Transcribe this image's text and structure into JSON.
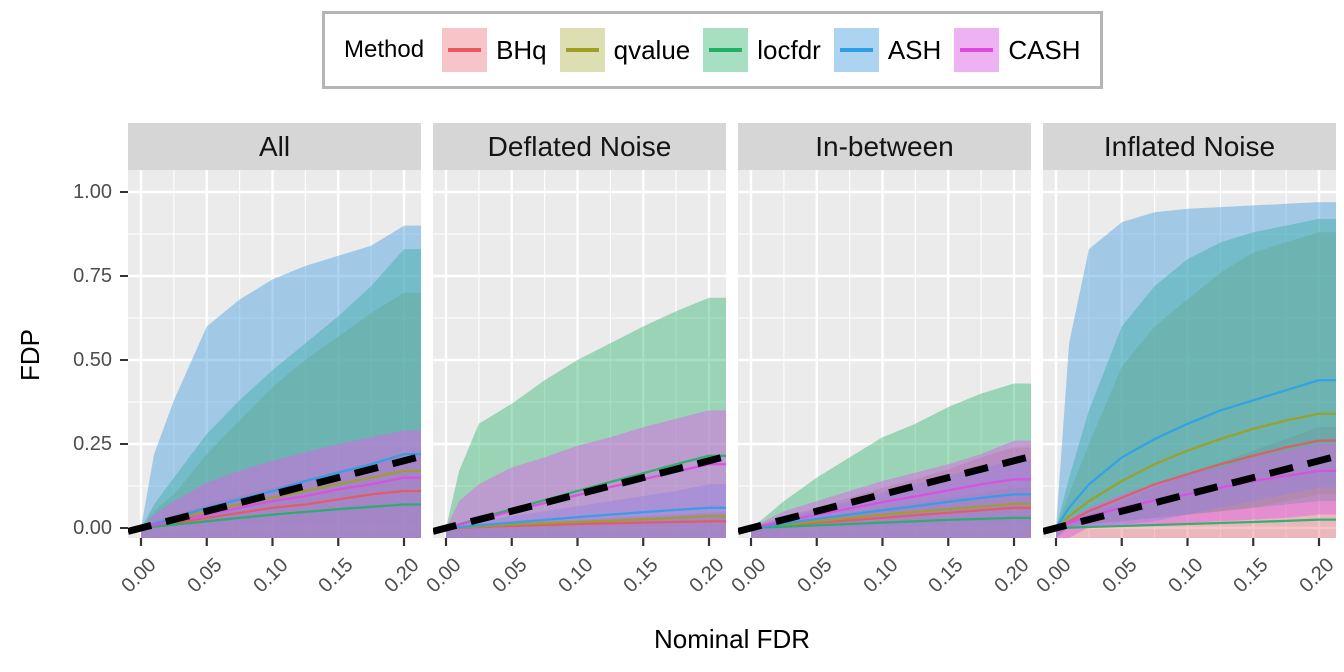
{
  "legend": {
    "title": "Method",
    "items": [
      "BHq",
      "qvalue",
      "locfdr",
      "ASH",
      "CASH"
    ]
  },
  "style": {
    "panel_bg": "#ebebeb",
    "strip_bg": "#d6d6d6",
    "grid_color": "#ffffff",
    "tick_color": "#333333",
    "tick_label_color": "#4d4d4d",
    "reference_line_color": "#000000"
  },
  "chart_data": {
    "type": "area",
    "title": "",
    "xlabel": "Nominal FDR",
    "ylabel": "FDP",
    "xlim": [
      0,
      0.2
    ],
    "ylim": [
      0,
      1
    ],
    "x_ticks": [
      "0.00",
      "0.05",
      "0.10",
      "0.15",
      "0.20"
    ],
    "x_tick_values": [
      0,
      0.05,
      0.1,
      0.15,
      0.2
    ],
    "y_ticks": [
      "1.00",
      "0.75",
      "0.50",
      "0.25",
      "0.00"
    ],
    "y_tick_values": [
      1,
      0.75,
      0.5,
      0.25,
      0
    ],
    "grid": "white major+minor on grey panel",
    "legend_position": "top",
    "reference_line": "y = x, black dashed",
    "x": [
      0,
      0.01,
      0.025,
      0.05,
      0.075,
      0.1,
      0.125,
      0.15,
      0.175,
      0.2
    ],
    "methods": [
      {
        "name": "BHq",
        "line_color": "#e8585f",
        "fill_color": "rgba(232,88,100,0.35)"
      },
      {
        "name": "qvalue",
        "line_color": "#9da021",
        "fill_color": "rgba(157,160,33,0.35)"
      },
      {
        "name": "locfdr",
        "line_color": "#21b066",
        "fill_color": "rgba(33,176,102,0.40)"
      },
      {
        "name": "ASH",
        "line_color": "#2da0e8",
        "fill_color": "rgba(70,160,225,0.45)"
      },
      {
        "name": "CASH",
        "line_color": "#dd4ce0",
        "fill_color": "rgba(221,100,230,0.50)"
      }
    ],
    "panels": [
      {
        "label": "All",
        "ribbon_upper": {
          "BHq": [
            0,
            0.02,
            0.04,
            0.07,
            0.095,
            0.12,
            0.145,
            0.17,
            0.195,
            0.22
          ],
          "qvalue": [
            0,
            0.05,
            0.1,
            0.22,
            0.32,
            0.42,
            0.5,
            0.57,
            0.64,
            0.7
          ],
          "locfdr": [
            0,
            0.07,
            0.15,
            0.28,
            0.38,
            0.47,
            0.55,
            0.63,
            0.72,
            0.83
          ],
          "ASH": [
            0,
            0.22,
            0.38,
            0.6,
            0.68,
            0.74,
            0.78,
            0.81,
            0.84,
            0.9
          ],
          "CASH": [
            0,
            0.04,
            0.08,
            0.135,
            0.17,
            0.2,
            0.225,
            0.25,
            0.27,
            0.29
          ]
        },
        "line": {
          "BHq": [
            0,
            0.006,
            0.015,
            0.03,
            0.045,
            0.06,
            0.07,
            0.085,
            0.1,
            0.11
          ],
          "qvalue": [
            0,
            0.01,
            0.025,
            0.05,
            0.07,
            0.09,
            0.11,
            0.13,
            0.15,
            0.17
          ],
          "locfdr": [
            0,
            0.004,
            0.01,
            0.02,
            0.03,
            0.04,
            0.048,
            0.056,
            0.063,
            0.07
          ],
          "ASH": [
            0,
            0.012,
            0.03,
            0.06,
            0.085,
            0.11,
            0.14,
            0.165,
            0.19,
            0.22
          ],
          "CASH": [
            0,
            0.008,
            0.02,
            0.04,
            0.06,
            0.08,
            0.095,
            0.115,
            0.13,
            0.15
          ]
        }
      },
      {
        "label": "Deflated Noise",
        "ribbon_upper": {
          "BHq": [
            0,
            0.004,
            0.01,
            0.015,
            0.02,
            0.025,
            0.03,
            0.035,
            0.04,
            0.045
          ],
          "qvalue": [
            0,
            0.003,
            0.006,
            0.01,
            0.015,
            0.02,
            0.025,
            0.03,
            0.035,
            0.04
          ],
          "locfdr": [
            0,
            0.17,
            0.31,
            0.37,
            0.44,
            0.5,
            0.55,
            0.6,
            0.645,
            0.685
          ],
          "ASH": [
            0,
            0.008,
            0.02,
            0.035,
            0.05,
            0.065,
            0.08,
            0.095,
            0.11,
            0.13
          ],
          "CASH": [
            0,
            0.08,
            0.13,
            0.18,
            0.21,
            0.245,
            0.27,
            0.3,
            0.325,
            0.35
          ]
        },
        "line": {
          "BHq": [
            0,
            0.001,
            0.003,
            0.006,
            0.009,
            0.012,
            0.014,
            0.016,
            0.018,
            0.02
          ],
          "qvalue": [
            0,
            0.002,
            0.005,
            0.01,
            0.014,
            0.018,
            0.022,
            0.026,
            0.03,
            0.035
          ],
          "locfdr": [
            0,
            0.011,
            0.028,
            0.056,
            0.083,
            0.11,
            0.137,
            0.163,
            0.19,
            0.215
          ],
          "ASH": [
            0,
            0.003,
            0.008,
            0.016,
            0.024,
            0.032,
            0.04,
            0.047,
            0.054,
            0.06
          ],
          "CASH": [
            0,
            0.01,
            0.025,
            0.05,
            0.074,
            0.098,
            0.122,
            0.145,
            0.168,
            0.19
          ]
        }
      },
      {
        "label": "In-between",
        "ribbon_upper": {
          "BHq": [
            0,
            0.015,
            0.035,
            0.06,
            0.09,
            0.12,
            0.145,
            0.175,
            0.21,
            0.24
          ],
          "qvalue": [
            0,
            0.006,
            0.015,
            0.03,
            0.045,
            0.06,
            0.075,
            0.09,
            0.105,
            0.12
          ],
          "locfdr": [
            0,
            0.03,
            0.08,
            0.15,
            0.21,
            0.27,
            0.31,
            0.36,
            0.4,
            0.43
          ],
          "ASH": [
            0,
            0.012,
            0.03,
            0.055,
            0.08,
            0.105,
            0.13,
            0.155,
            0.18,
            0.2
          ],
          "CASH": [
            0,
            0.02,
            0.05,
            0.08,
            0.11,
            0.14,
            0.165,
            0.19,
            0.22,
            0.26
          ]
        },
        "line": {
          "BHq": [
            0,
            0.003,
            0.008,
            0.016,
            0.023,
            0.03,
            0.038,
            0.045,
            0.053,
            0.06
          ],
          "qvalue": [
            0,
            0.004,
            0.01,
            0.02,
            0.03,
            0.04,
            0.048,
            0.056,
            0.064,
            0.072
          ],
          "locfdr": [
            0,
            0.002,
            0.004,
            0.008,
            0.012,
            0.016,
            0.02,
            0.024,
            0.027,
            0.03
          ],
          "ASH": [
            0,
            0.005,
            0.013,
            0.027,
            0.04,
            0.053,
            0.065,
            0.078,
            0.09,
            0.1
          ],
          "CASH": [
            0,
            0.008,
            0.02,
            0.04,
            0.058,
            0.077,
            0.094,
            0.112,
            0.13,
            0.145
          ]
        }
      },
      {
        "label": "Inflated Noise",
        "ribbon_upper": {
          "BHq": [
            0,
            0.02,
            0.04,
            0.08,
            0.12,
            0.16,
            0.195,
            0.23,
            0.265,
            0.3
          ],
          "qvalue": [
            0,
            0.1,
            0.25,
            0.48,
            0.6,
            0.68,
            0.76,
            0.82,
            0.85,
            0.88
          ],
          "locfdr": [
            0,
            0.15,
            0.35,
            0.6,
            0.72,
            0.8,
            0.85,
            0.88,
            0.9,
            0.92
          ],
          "ASH": [
            0,
            0.55,
            0.83,
            0.91,
            0.94,
            0.95,
            0.955,
            0.96,
            0.965,
            0.97
          ],
          "CASH": [
            0,
            0.025,
            0.06,
            0.1,
            0.13,
            0.16,
            0.18,
            0.21,
            0.23,
            0.25
          ]
        },
        "ribbon_lower": {
          "qvalue": [
            0,
            0.005,
            0.01,
            0.02,
            0.03,
            0.04,
            0.05,
            0.06,
            0.08,
            0.1
          ],
          "locfdr": [
            0,
            0.005,
            0.01,
            0.02,
            0.03,
            0.04,
            0.05,
            0.06,
            0.07,
            0.08
          ],
          "ASH": [
            0,
            0.002,
            0.005,
            0.01,
            0.02,
            0.04,
            0.06,
            0.08,
            0.1,
            0.12
          ],
          "CASH": [
            0,
            0,
            0.002,
            0.005,
            0.01,
            0.015,
            0.02,
            0.025,
            0.03,
            0.04
          ]
        },
        "line": {
          "BHq": [
            0,
            0.02,
            0.05,
            0.09,
            0.13,
            0.16,
            0.19,
            0.215,
            0.24,
            0.26
          ],
          "qvalue": [
            0,
            0.035,
            0.08,
            0.14,
            0.19,
            0.23,
            0.265,
            0.295,
            0.32,
            0.34
          ],
          "locfdr": [
            0,
            0.001,
            0.003,
            0.006,
            0.009,
            0.012,
            0.015,
            0.018,
            0.021,
            0.025
          ],
          "ASH": [
            0,
            0.06,
            0.13,
            0.21,
            0.265,
            0.31,
            0.35,
            0.38,
            0.41,
            0.44
          ],
          "CASH": [
            0,
            0.015,
            0.035,
            0.06,
            0.082,
            0.1,
            0.12,
            0.14,
            0.155,
            0.17
          ]
        }
      }
    ]
  }
}
